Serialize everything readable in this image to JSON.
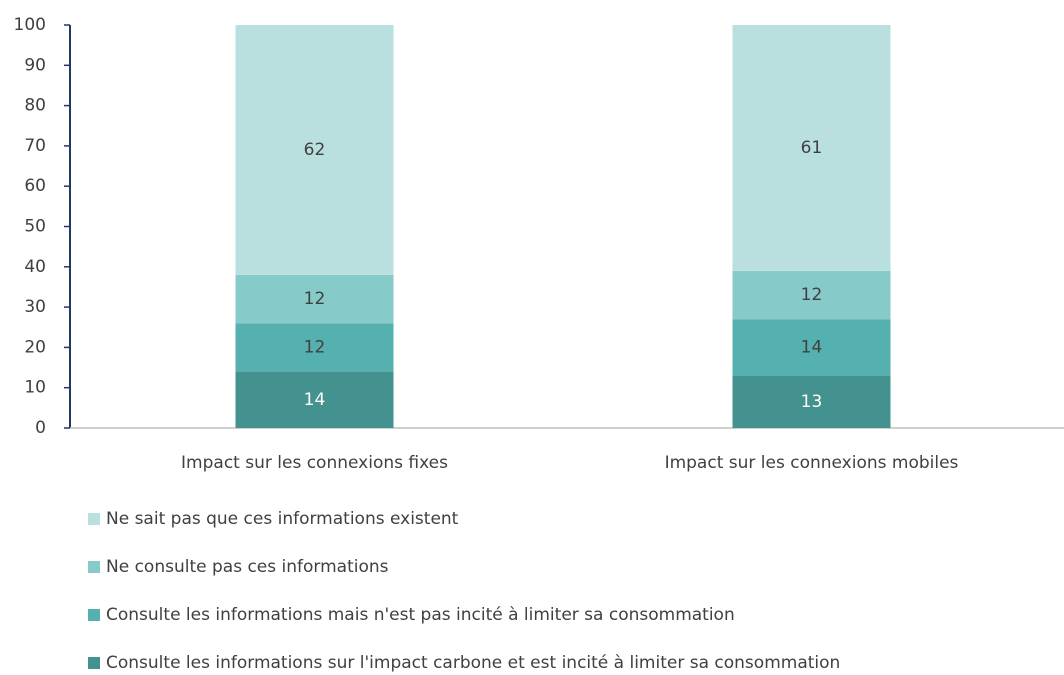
{
  "chart_data": {
    "type": "stacked_bar",
    "categories": [
      "Impact sur les connexions fixes",
      "Impact sur les connexions mobiles"
    ],
    "series": [
      {
        "name": "Consulte les informations sur l'impact carbone et est incité à limiter sa consommation",
        "color": "#43928f",
        "values": [
          14,
          13
        ]
      },
      {
        "name": "Consulte les informations mais n'est pas incité à limiter sa consommation",
        "color": "#55b1b0",
        "values": [
          12,
          14
        ]
      },
      {
        "name": "Ne consulte pas ces informations",
        "color": "#86caca",
        "values": [
          12,
          12
        ]
      },
      {
        "name": "Ne sait pas que ces informations existent",
        "color": "#b9dfdf",
        "values": [
          62,
          61
        ]
      }
    ],
    "ylim": [
      0,
      100
    ],
    "yticks": [
      0,
      10,
      20,
      30,
      40,
      50,
      60,
      70,
      80,
      90,
      100
    ]
  }
}
